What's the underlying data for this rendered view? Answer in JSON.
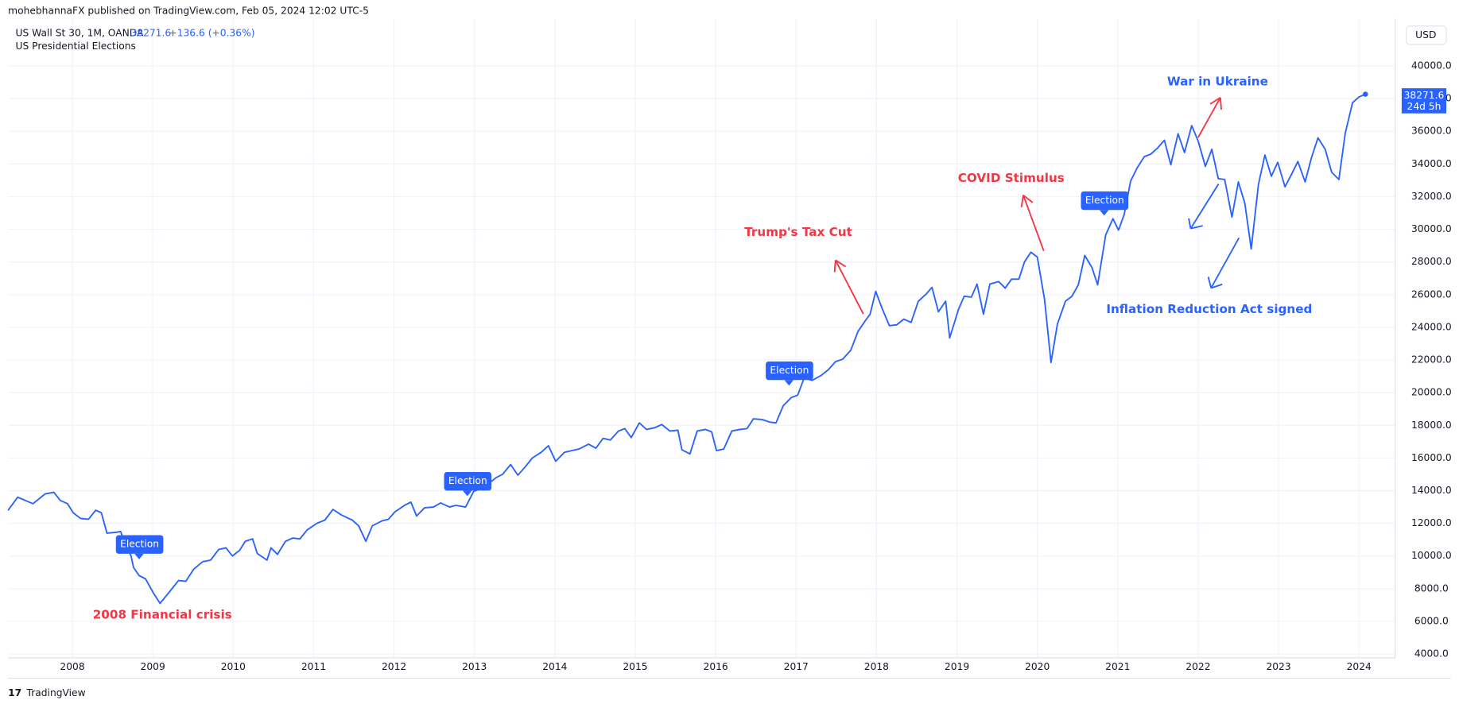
{
  "header": {
    "published": "mohebhannaFX published on TradingView.com, Feb 05, 2024 12:02 UTC-5",
    "symbol": "US Wall St 30, 1M, OANDA",
    "change": "+136.6 (+0.36%)",
    "indicator": "US Presidential Elections",
    "currency": "USD",
    "countdown": "24d 5h"
  },
  "footer": {
    "brand": "TradingView"
  },
  "chart_data": {
    "type": "line",
    "xlim": [
      2007.2,
      2024.45
    ],
    "ylim": [
      2800,
      42900
    ],
    "xticks": [
      2008,
      2009,
      2010,
      2011,
      2012,
      2013,
      2014,
      2015,
      2016,
      2017,
      2018,
      2019,
      2020,
      2021,
      2022,
      2023,
      2024
    ],
    "yticks": [
      {
        "value": 4000,
        "label": "4000.0"
      },
      {
        "value": 6000,
        "label": "6000.0"
      },
      {
        "value": 8000,
        "label": "8000.0"
      },
      {
        "value": 10000,
        "label": "10000.0"
      },
      {
        "value": 12000,
        "label": "12000.0"
      },
      {
        "value": 14000,
        "label": "14000.0"
      },
      {
        "value": 16000,
        "label": "16000.0"
      },
      {
        "value": 18000,
        "label": "18000.0"
      },
      {
        "value": 20000,
        "label": "20000.0"
      },
      {
        "value": 22000,
        "label": "22000.0"
      },
      {
        "value": 24000,
        "label": "24000.0"
      },
      {
        "value": 26000,
        "label": "26000.0"
      },
      {
        "value": 28000,
        "label": "28000.0"
      },
      {
        "value": 30000,
        "label": "30000.0"
      },
      {
        "value": 32000,
        "label": "32000.0"
      },
      {
        "value": 34000,
        "label": "34000.0"
      },
      {
        "value": 36000,
        "label": "36000.0"
      },
      {
        "value": 38000,
        "label": "38000.0"
      },
      {
        "value": 40000,
        "label": "40000.0"
      }
    ],
    "grid": true,
    "annotations": [
      "2008 Financial crisis",
      "Trump's Tax Cut",
      "COVID Stimulus",
      "War in Ukraine",
      "Inflation Reduction Act signed"
    ],
    "event_labels": [
      "Election",
      "Election",
      "Election",
      "Election"
    ],
    "series": [
      {
        "name": "US Wall St 30",
        "color": "#2962ff",
        "x": [
          2007.2,
          2007.32,
          2007.51,
          2007.66,
          2007.77,
          2007.85,
          2007.94,
          2008.01,
          2008.1,
          2008.2,
          2008.29,
          2008.36,
          2008.43,
          2008.54,
          2008.6,
          2008.66,
          2008.73,
          2008.76,
          2008.83,
          2008.91,
          2009.0,
          2009.09,
          2009.19,
          2009.32,
          2009.41,
          2009.51,
          2009.62,
          2009.72,
          2009.82,
          2009.91,
          2009.99,
          2010.08,
          2010.15,
          2010.24,
          2010.3,
          2010.42,
          2010.47,
          2010.55,
          2010.65,
          2010.74,
          2010.83,
          2010.92,
          2011.04,
          2011.14,
          2011.24,
          2011.35,
          2011.48,
          2011.56,
          2011.65,
          2011.73,
          2011.85,
          2011.93,
          2012.01,
          2012.13,
          2012.21,
          2012.28,
          2012.38,
          2012.49,
          2012.58,
          2012.69,
          2012.77,
          2012.89,
          2012.99,
          2013.09,
          2013.18,
          2013.27,
          2013.35,
          2013.45,
          2013.54,
          2013.63,
          2013.72,
          2013.83,
          2013.92,
          2014.01,
          2014.12,
          2014.21,
          2014.3,
          2014.42,
          2014.51,
          2014.6,
          2014.69,
          2014.79,
          2014.87,
          2014.95,
          2015.05,
          2015.14,
          2015.24,
          2015.33,
          2015.43,
          2015.53,
          2015.58,
          2015.68,
          2015.77,
          2015.87,
          2015.95,
          2016.01,
          2016.1,
          2016.2,
          2016.3,
          2016.39,
          2016.47,
          2016.58,
          2016.67,
          2016.75,
          2016.84,
          2016.94,
          2017.02,
          2017.1,
          2017.2,
          2017.31,
          2017.4,
          2017.49,
          2017.58,
          2017.68,
          2017.77,
          2017.86,
          2017.92,
          2017.99,
          2018.07,
          2018.16,
          2018.25,
          2018.34,
          2018.43,
          2018.52,
          2018.62,
          2018.69,
          2018.77,
          2018.86,
          2018.91,
          2019.02,
          2019.09,
          2019.18,
          2019.25,
          2019.33,
          2019.41,
          2019.52,
          2019.6,
          2019.68,
          2019.77,
          2019.84,
          2019.92,
          2020.0,
          2020.09,
          2020.17,
          2020.25,
          2020.35,
          2020.43,
          2020.51,
          2020.59,
          2020.68,
          2020.75,
          2020.85,
          2020.94,
          2021.01,
          2021.08,
          2021.16,
          2021.24,
          2021.33,
          2021.41,
          2021.49,
          2021.58,
          2021.66,
          2021.75,
          2021.83,
          2021.92,
          2022.0,
          2022.09,
          2022.17,
          2022.25,
          2022.33,
          2022.42,
          2022.5,
          2022.58,
          2022.66,
          2022.75,
          2022.83,
          2022.91,
          2022.99,
          2023.08,
          2023.16,
          2023.24,
          2023.33,
          2023.41,
          2023.49,
          2023.58,
          2023.66,
          2023.75,
          2023.83,
          2023.92,
          2024.0,
          2024.08
        ],
        "values": [
          12800,
          13600,
          13200,
          13800,
          13900,
          13400,
          13200,
          12650,
          12300,
          12250,
          12800,
          12650,
          11400,
          11450,
          11500,
          10700,
          10000,
          9300,
          8800,
          8600,
          7800,
          7100,
          7700,
          8500,
          8450,
          9200,
          9650,
          9750,
          10400,
          10500,
          10000,
          10350,
          10900,
          11050,
          10150,
          9750,
          10500,
          10100,
          10900,
          11100,
          11050,
          11600,
          12000,
          12200,
          12850,
          12500,
          12200,
          11850,
          10900,
          11850,
          12150,
          12250,
          12700,
          13100,
          13300,
          12450,
          12950,
          13000,
          13250,
          13000,
          13100,
          13000,
          13950,
          14150,
          14450,
          14800,
          15000,
          15600,
          14950,
          15450,
          16000,
          16350,
          16750,
          15800,
          16350,
          16450,
          16550,
          16850,
          16600,
          17200,
          17100,
          17650,
          17800,
          17250,
          18150,
          17750,
          17850,
          18050,
          17650,
          17700,
          16500,
          16250,
          17650,
          17750,
          17600,
          16450,
          16550,
          17650,
          17750,
          17800,
          18400,
          18350,
          18200,
          18150,
          19200,
          19700,
          19850,
          20900,
          20750,
          21050,
          21400,
          21900,
          22050,
          22600,
          23750,
          24400,
          24800,
          26200,
          25150,
          24100,
          24150,
          24500,
          24300,
          25600,
          26050,
          26450,
          24950,
          25600,
          23350,
          25100,
          25900,
          25850,
          26650,
          24800,
          26650,
          26800,
          26400,
          26950,
          26950,
          28000,
          28600,
          28300,
          25700,
          21850,
          24200,
          25600,
          25900,
          26600,
          28400,
          27650,
          26600,
          29650,
          30650,
          29950,
          30900,
          32950,
          33750,
          34450,
          34600,
          34950,
          35450,
          33950,
          35850,
          34700,
          36350,
          35400,
          33850,
          34900,
          33100,
          33050,
          30750,
          32900,
          31600,
          28800,
          32750,
          34550,
          33250,
          34100,
          32600,
          33350,
          34150,
          32900,
          34400,
          35600,
          34900,
          33500,
          33050,
          35900,
          37750,
          38100,
          38271.6
        ]
      }
    ]
  }
}
